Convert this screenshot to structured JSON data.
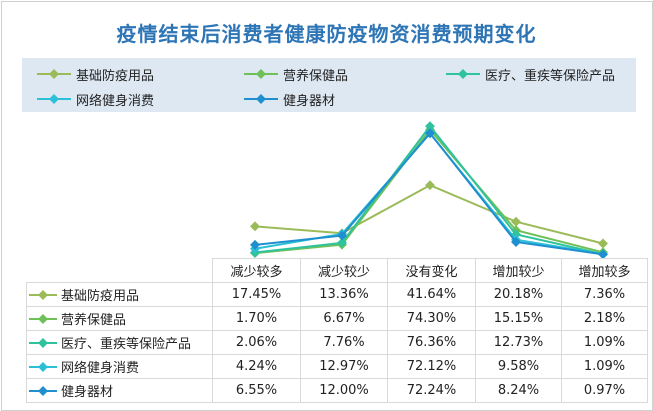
{
  "chart_data": {
    "type": "line",
    "title": "疫情结束后消费者健康防疫物资消费预期变化",
    "categories": [
      "减少较多",
      "减少较少",
      "没有变化",
      "增加较少",
      "增加较多"
    ],
    "series": [
      {
        "name": "基础防疫用品",
        "values": [
          17.45,
          13.36,
          41.64,
          20.18,
          7.36
        ],
        "labels": [
          "17.45%",
          "13.36%",
          "41.64%",
          "20.18%",
          "7.36%"
        ],
        "color": "#9bbb59"
      },
      {
        "name": "营养保健品",
        "values": [
          1.7,
          6.67,
          74.3,
          15.15,
          2.18
        ],
        "labels": [
          "1.70%",
          "6.67%",
          "74.30%",
          "15.15%",
          "2.18%"
        ],
        "color": "#70c05a"
      },
      {
        "name": "医疗、重疾等保险产品",
        "values": [
          2.06,
          7.76,
          76.36,
          12.73,
          1.09
        ],
        "labels": [
          "2.06%",
          "7.76%",
          "76.36%",
          "12.73%",
          "1.09%"
        ],
        "color": "#2ec39c"
      },
      {
        "name": "网络健身消费",
        "values": [
          4.24,
          12.97,
          72.12,
          9.58,
          1.09
        ],
        "labels": [
          "4.24%",
          "12.97%",
          "72.12%",
          "9.58%",
          "1.09%"
        ],
        "color": "#2bc0d8"
      },
      {
        "name": "健身器材",
        "values": [
          6.55,
          12.0,
          72.24,
          8.24,
          0.97
        ],
        "labels": [
          "6.55%",
          "12.00%",
          "72.24%",
          "8.24%",
          "0.97%"
        ],
        "color": "#1f8fcf"
      }
    ],
    "legend": "top",
    "grid": false,
    "data_table": true
  }
}
